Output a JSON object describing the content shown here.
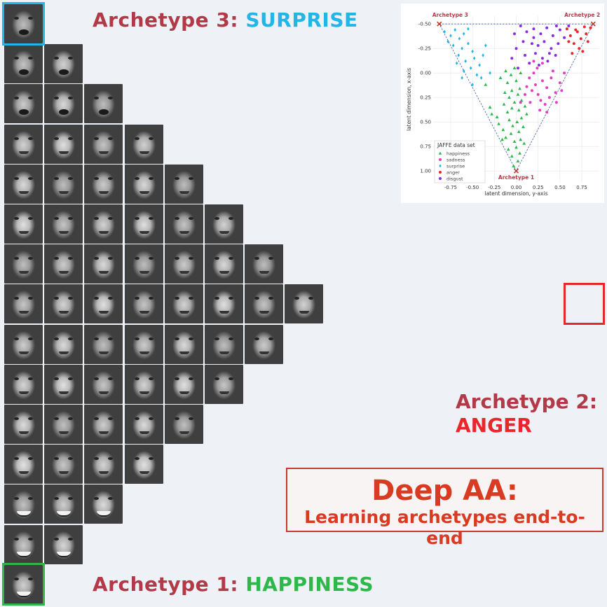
{
  "labels": {
    "a3_prefix": "Archetype 3:",
    "a3_emotion": "SURPRISE",
    "a2_prefix": "Archetype 2:",
    "a2_emotion": "ANGER",
    "a1_prefix": "Archetype 1:",
    "a1_emotion": "HAPPINESS"
  },
  "title": {
    "main": "Deep AA:",
    "sub": "Learning archetypes end-to-end"
  },
  "colors": {
    "surprise": "#22b5e6",
    "anger": "#e8262b",
    "happiness": "#2eb84b",
    "label_prefix": "#b23a48",
    "title": "#d83a22"
  },
  "chart_data": {
    "type": "scatter",
    "xlabel": "latent dimension, y-axis",
    "ylabel": "latent dimension, x-axis",
    "xlim": [
      -0.95,
      0.95
    ],
    "ylim": [
      1.12,
      -0.58
    ],
    "xticks": [
      "-0.75",
      "-0.50",
      "-0.25",
      "0.00",
      "0.25",
      "0.50",
      "0.75"
    ],
    "xtick_values": [
      -0.75,
      -0.5,
      -0.25,
      0,
      0.25,
      0.5,
      0.75
    ],
    "yticks": [
      "-0.50",
      "-0.25",
      "0.00",
      "0.25",
      "0.50",
      "0.75",
      "1.00"
    ],
    "ytick_values": [
      -0.5,
      -0.25,
      0,
      0.25,
      0.5,
      0.75,
      1.0
    ],
    "legend_title": "JAFFE data set",
    "legend_position": "bottom-left",
    "archetypes": [
      {
        "name": "Archetype 3",
        "x": -0.88,
        "y": -0.5
      },
      {
        "name": "Archetype 2",
        "x": 0.88,
        "y": -0.5
      },
      {
        "name": "Archetype 1",
        "x": 0.0,
        "y": 1.0
      }
    ],
    "series": [
      {
        "name": "happiness",
        "color": "#2eb84b",
        "marker": "triangle",
        "points": [
          [
            -0.03,
            0.95
          ],
          [
            0.02,
            0.9
          ],
          [
            -0.05,
            0.85
          ],
          [
            0.04,
            0.82
          ],
          [
            -0.09,
            0.78
          ],
          [
            0.0,
            0.76
          ],
          [
            -0.02,
            0.7
          ],
          [
            0.05,
            0.68
          ],
          [
            -0.12,
            0.66
          ],
          [
            -0.06,
            0.62
          ],
          [
            0.03,
            0.6
          ],
          [
            -0.15,
            0.58
          ],
          [
            0.08,
            0.55
          ],
          [
            -0.04,
            0.54
          ],
          [
            -0.2,
            0.52
          ],
          [
            0.01,
            0.5
          ],
          [
            -0.08,
            0.48
          ],
          [
            0.06,
            0.46
          ],
          [
            -0.28,
            0.42
          ],
          [
            -0.1,
            0.4
          ],
          [
            0.03,
            0.38
          ],
          [
            -0.05,
            0.36
          ],
          [
            0.1,
            0.34
          ],
          [
            -0.14,
            0.32
          ],
          [
            -0.02,
            0.3
          ],
          [
            0.06,
            0.28
          ],
          [
            -0.08,
            0.25
          ],
          [
            0.02,
            0.22
          ],
          [
            -0.13,
            0.2
          ],
          [
            -0.05,
            0.18
          ],
          [
            0.04,
            0.16
          ],
          [
            -0.35,
            0.12
          ],
          [
            -0.1,
            0.1
          ],
          [
            0.0,
            0.08
          ],
          [
            -0.18,
            0.05
          ],
          [
            -0.06,
            0.02
          ],
          [
            -0.12,
            -0.02
          ],
          [
            -0.02,
            -0.05
          ],
          [
            0.05,
            0.0
          ],
          [
            -0.22,
            0.45
          ],
          [
            0.12,
            0.42
          ],
          [
            -0.16,
            0.68
          ],
          [
            0.09,
            0.72
          ],
          [
            -0.3,
            0.35
          ]
        ]
      },
      {
        "name": "sadness",
        "color": "#e23fc0",
        "marker": "circle",
        "points": [
          [
            0.15,
            0.05
          ],
          [
            0.22,
            0.12
          ],
          [
            0.3,
            0.08
          ],
          [
            0.18,
            0.18
          ],
          [
            0.25,
            0.22
          ],
          [
            0.35,
            0.15
          ],
          [
            0.4,
            0.05
          ],
          [
            0.28,
            0.28
          ],
          [
            0.45,
            0.2
          ],
          [
            0.2,
            0.0
          ],
          [
            0.12,
            0.14
          ],
          [
            0.33,
            0.32
          ],
          [
            0.5,
            0.1
          ],
          [
            0.38,
            0.25
          ],
          [
            0.24,
            -0.05
          ],
          [
            0.42,
            -0.02
          ],
          [
            0.1,
            0.22
          ],
          [
            0.3,
            -0.1
          ],
          [
            0.55,
            0.0
          ],
          [
            0.16,
            0.3
          ],
          [
            0.35,
            0.4
          ],
          [
            0.46,
            0.3
          ],
          [
            0.2,
            -0.12
          ],
          [
            0.05,
            0.3
          ],
          [
            0.27,
            0.38
          ],
          [
            0.52,
            0.18
          ]
        ]
      },
      {
        "name": "surprise",
        "color": "#22b5e6",
        "marker": "diamond",
        "points": [
          [
            -0.82,
            -0.42
          ],
          [
            -0.75,
            -0.38
          ],
          [
            -0.7,
            -0.44
          ],
          [
            -0.65,
            -0.35
          ],
          [
            -0.6,
            -0.4
          ],
          [
            -0.72,
            -0.28
          ],
          [
            -0.62,
            -0.25
          ],
          [
            -0.55,
            -0.3
          ],
          [
            -0.5,
            -0.22
          ],
          [
            -0.66,
            -0.18
          ],
          [
            -0.58,
            -0.12
          ],
          [
            -0.48,
            -0.15
          ],
          [
            -0.52,
            -0.05
          ],
          [
            -0.42,
            -0.08
          ],
          [
            -0.6,
            -0.02
          ],
          [
            -0.45,
            0.02
          ],
          [
            -0.38,
            -0.18
          ],
          [
            -0.78,
            -0.32
          ],
          [
            -0.68,
            -0.1
          ],
          [
            -0.55,
            -0.45
          ],
          [
            -0.4,
            0.05
          ],
          [
            -0.5,
            0.12
          ],
          [
            -0.35,
            -0.28
          ],
          [
            -0.3,
            0.0
          ],
          [
            -0.62,
            0.05
          ]
        ]
      },
      {
        "name": "anger",
        "color": "#e8262b",
        "marker": "circle",
        "points": [
          [
            0.85,
            -0.46
          ],
          [
            0.8,
            -0.4
          ],
          [
            0.78,
            -0.47
          ],
          [
            0.74,
            -0.35
          ],
          [
            0.7,
            -0.42
          ],
          [
            0.82,
            -0.32
          ],
          [
            0.66,
            -0.3
          ],
          [
            0.72,
            -0.25
          ],
          [
            0.62,
            -0.38
          ],
          [
            0.76,
            -0.22
          ],
          [
            0.68,
            -0.44
          ],
          [
            0.6,
            -0.32
          ],
          [
            0.64,
            -0.2
          ],
          [
            0.58,
            -0.45
          ]
        ]
      },
      {
        "name": "disgust",
        "color": "#8a2be2",
        "marker": "circle",
        "points": [
          [
            0.05,
            -0.48
          ],
          [
            0.12,
            -0.42
          ],
          [
            0.2,
            -0.45
          ],
          [
            0.28,
            -0.4
          ],
          [
            0.35,
            -0.46
          ],
          [
            0.42,
            -0.38
          ],
          [
            0.5,
            -0.44
          ],
          [
            0.55,
            -0.36
          ],
          [
            0.08,
            -0.32
          ],
          [
            0.18,
            -0.3
          ],
          [
            0.25,
            -0.28
          ],
          [
            0.32,
            -0.32
          ],
          [
            0.4,
            -0.25
          ],
          [
            0.48,
            -0.3
          ],
          [
            0.0,
            -0.25
          ],
          [
            0.1,
            -0.18
          ],
          [
            0.22,
            -0.2
          ],
          [
            0.3,
            -0.15
          ],
          [
            0.38,
            -0.2
          ],
          [
            0.45,
            -0.18
          ],
          [
            -0.05,
            -0.15
          ],
          [
            0.15,
            -0.1
          ],
          [
            0.26,
            -0.08
          ],
          [
            0.36,
            -0.12
          ],
          [
            0.02,
            -0.05
          ],
          [
            0.2,
            -0.36
          ],
          [
            0.6,
            -0.48
          ],
          [
            0.46,
            -0.48
          ],
          [
            -0.02,
            -0.4
          ]
        ]
      }
    ]
  }
}
